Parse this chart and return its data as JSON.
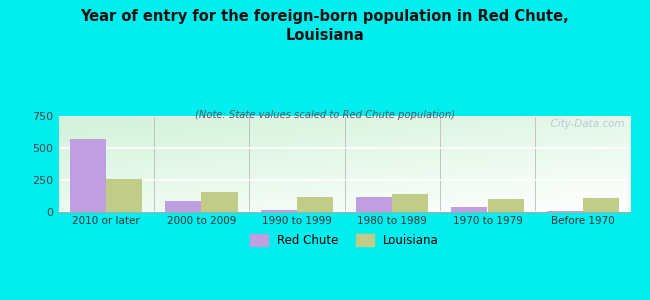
{
  "title": "Year of entry for the foreign-born population in Red Chute,\nLouisiana",
  "subtitle": "(Note: State values scaled to Red Chute population)",
  "categories": [
    "2010 or later",
    "2000 to 2009",
    "1990 to 1999",
    "1980 to 1989",
    "1970 to 1979",
    "Before 1970"
  ],
  "red_chute": [
    565,
    85,
    10,
    115,
    35,
    5
  ],
  "louisiana": [
    255,
    150,
    110,
    135,
    100,
    105
  ],
  "red_chute_color": "#bf9fdf",
  "louisiana_color": "#c0cc88",
  "background_color": "#00eeee",
  "ylim": [
    0,
    750
  ],
  "yticks": [
    0,
    250,
    500,
    750
  ],
  "bar_width": 0.38,
  "watermark": "  City-Data.com",
  "legend_red_chute": "Red Chute",
  "legend_louisiana": "Louisiana"
}
